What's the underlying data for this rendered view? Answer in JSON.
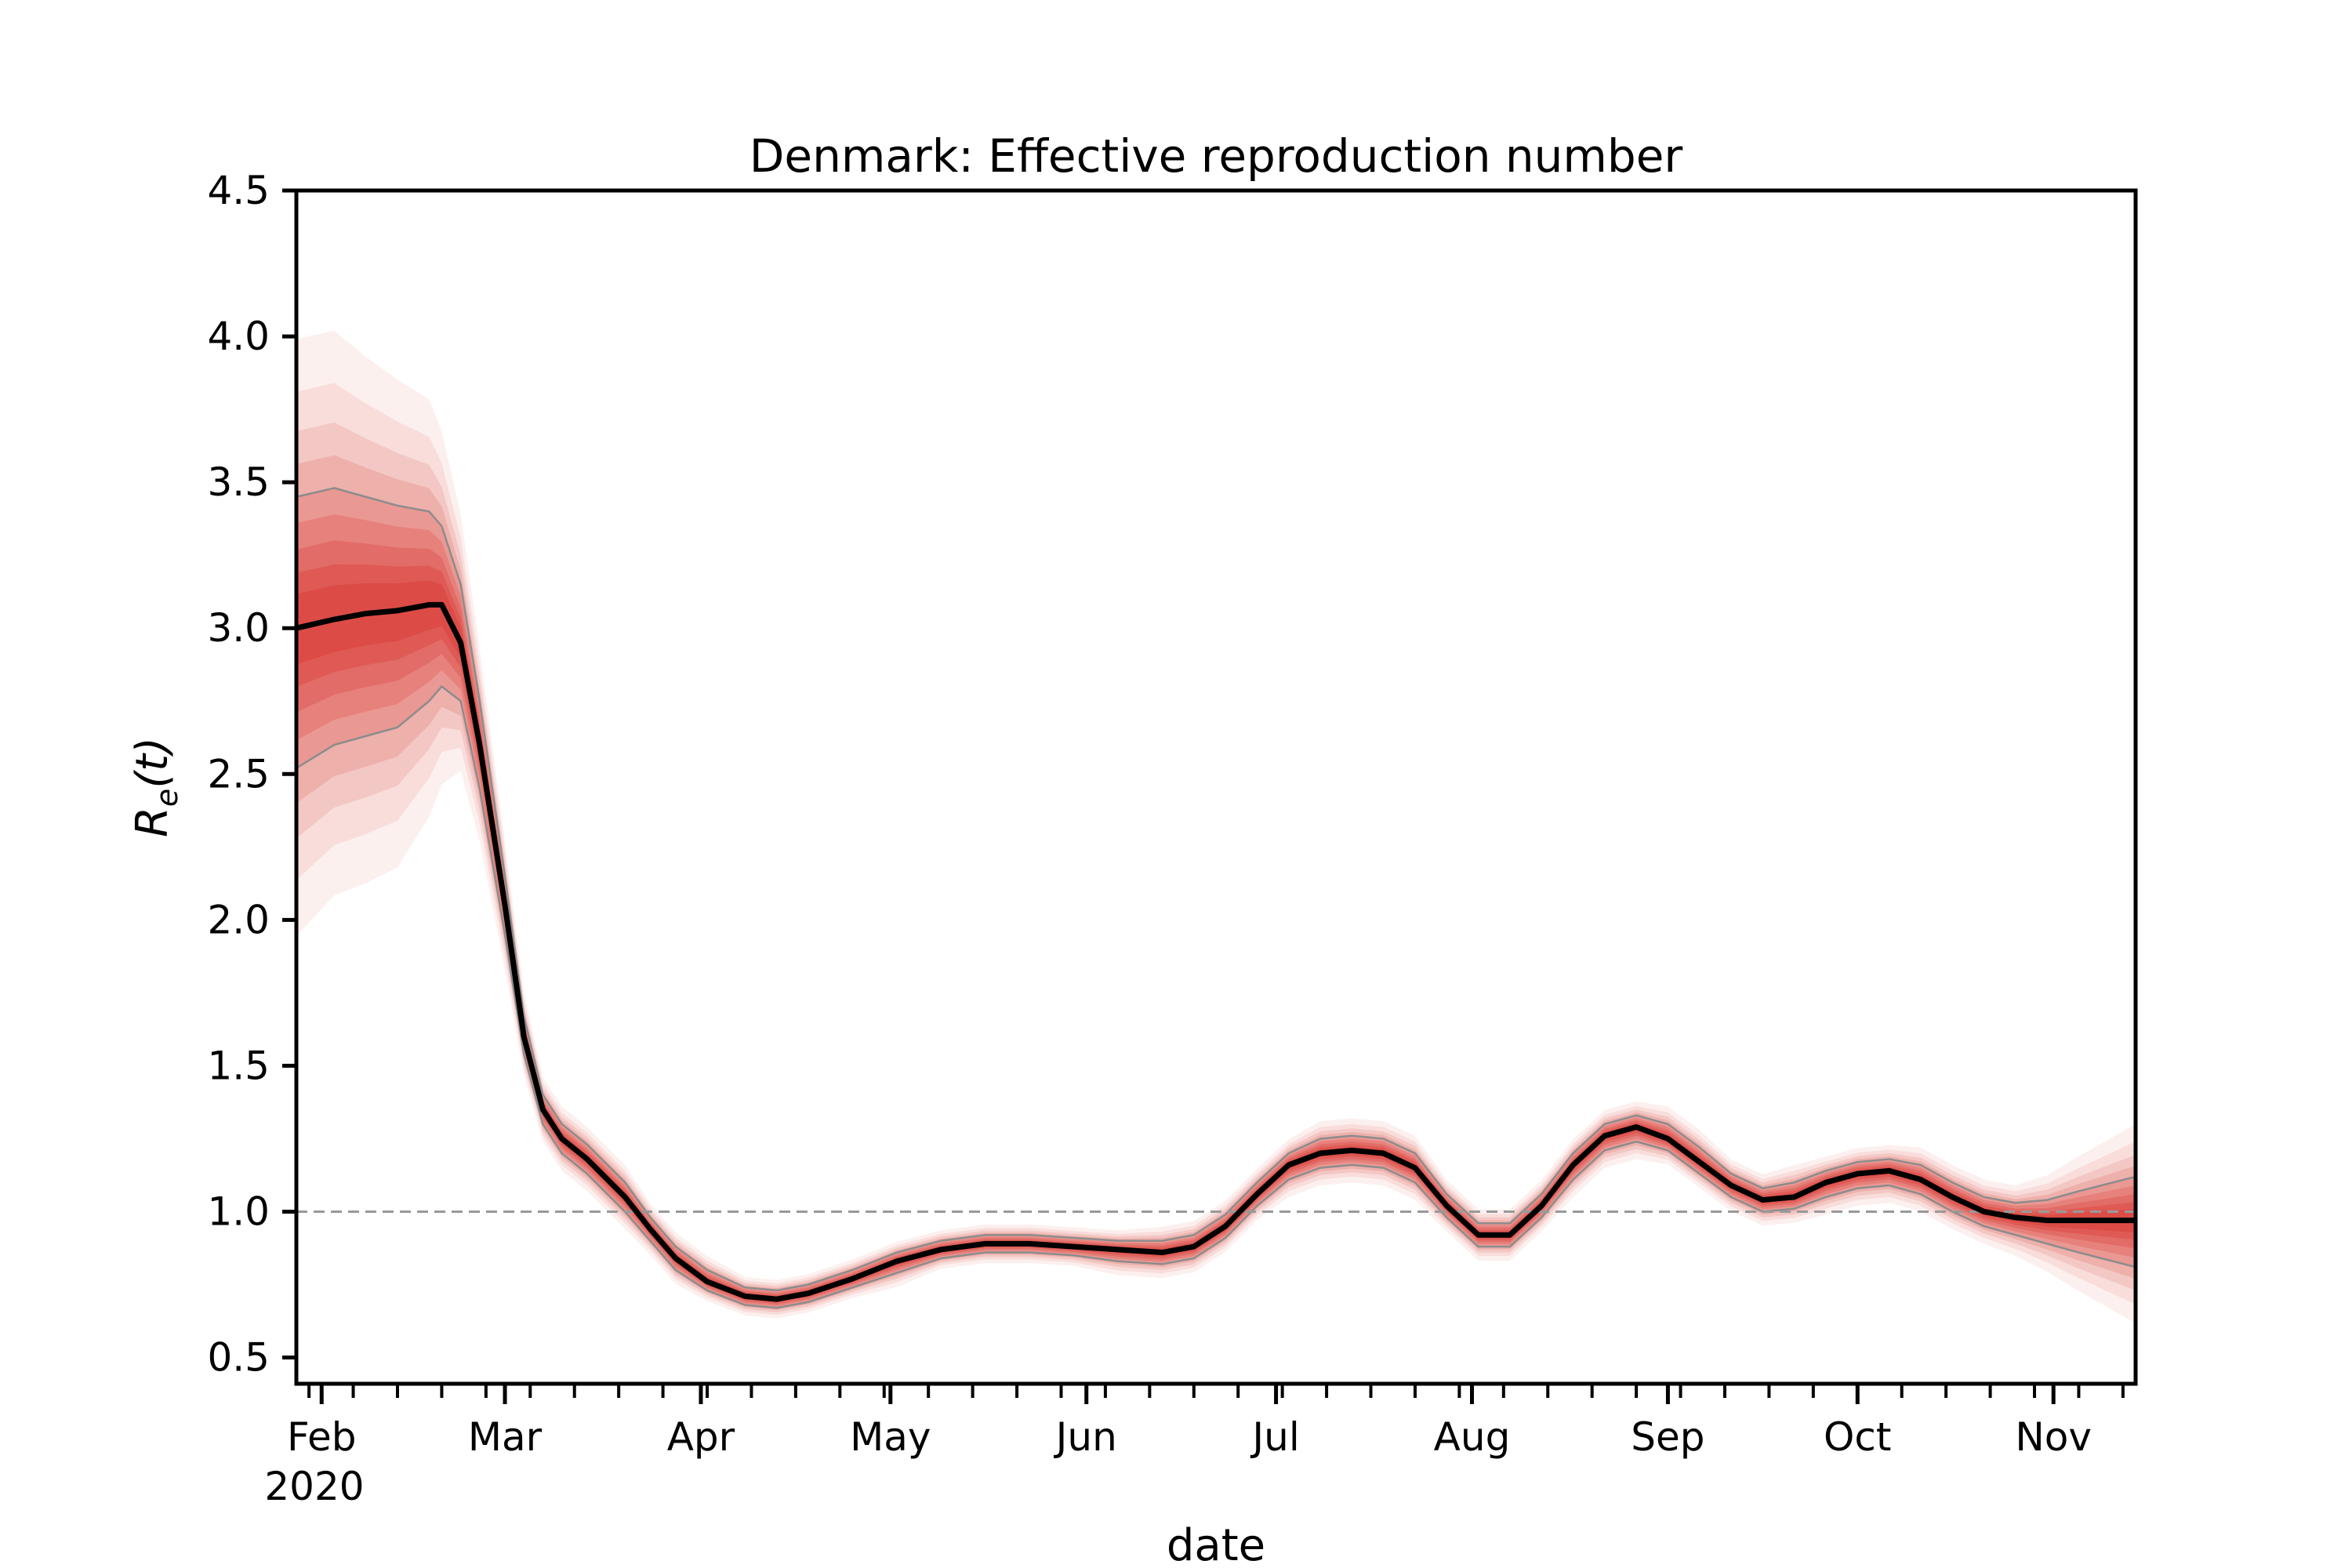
{
  "chart_data": {
    "type": "line",
    "title": "Denmark: Effective reproduction number",
    "xlabel": "date",
    "ylabel": "R_e(t)",
    "ylabel_parts": {
      "symbol": "R",
      "subscript": "e",
      "argument": "(t)"
    },
    "x_start": "2020-01-28",
    "x_end": "2020-11-14",
    "ylim": [
      0.41,
      4.5
    ],
    "yticks": [
      0.5,
      1.0,
      1.5,
      2.0,
      2.5,
      3.0,
      3.5,
      4.0,
      4.5
    ],
    "ytick_labels": [
      "0.5",
      "1.0",
      "1.5",
      "2.0",
      "2.5",
      "3.0",
      "3.5",
      "4.0",
      "4.5"
    ],
    "xticks": [
      {
        "date": "2020-02-01",
        "label": "Feb"
      },
      {
        "date": "2020-03-01",
        "label": "Mar"
      },
      {
        "date": "2020-04-01",
        "label": "Apr"
      },
      {
        "date": "2020-05-01",
        "label": "May"
      },
      {
        "date": "2020-06-01",
        "label": "Jun"
      },
      {
        "date": "2020-07-01",
        "label": "Jul"
      },
      {
        "date": "2020-08-01",
        "label": "Aug"
      },
      {
        "date": "2020-09-01",
        "label": "Sep"
      },
      {
        "date": "2020-10-01",
        "label": "Oct"
      },
      {
        "date": "2020-11-01",
        "label": "Nov"
      }
    ],
    "year_label": "2020",
    "reference_line": {
      "y": 1.0,
      "style": "dashed",
      "color": "#999999"
    },
    "grid": false,
    "colors": {
      "median": "#000000",
      "band": "#d7261e",
      "band_edge": "#8c8c8c"
    },
    "series": [
      {
        "x": [
          "2020-01-28",
          "2020-02-03",
          "2020-02-08",
          "2020-02-13",
          "2020-02-18",
          "2020-02-20",
          "2020-02-23",
          "2020-02-26",
          "2020-03-01",
          "2020-03-04",
          "2020-03-07",
          "2020-03-10",
          "2020-03-14",
          "2020-03-20",
          "2020-03-24",
          "2020-03-28",
          "2020-04-02",
          "2020-04-08",
          "2020-04-13",
          "2020-04-18",
          "2020-04-25",
          "2020-05-02",
          "2020-05-09",
          "2020-05-16",
          "2020-05-23",
          "2020-05-30",
          "2020-06-06",
          "2020-06-13",
          "2020-06-18",
          "2020-06-23",
          "2020-06-28",
          "2020-07-03",
          "2020-07-08",
          "2020-07-13",
          "2020-07-18",
          "2020-07-23",
          "2020-07-28",
          "2020-08-02",
          "2020-08-07",
          "2020-08-12",
          "2020-08-17",
          "2020-08-22",
          "2020-08-27",
          "2020-09-01",
          "2020-09-06",
          "2020-09-11",
          "2020-09-16",
          "2020-09-21",
          "2020-09-26",
          "2020-10-01",
          "2020-10-06",
          "2020-10-11",
          "2020-10-16",
          "2020-10-21",
          "2020-10-26",
          "2020-10-31",
          "2020-11-05",
          "2020-11-14"
        ],
        "median": [
          3.0,
          3.03,
          3.05,
          3.06,
          3.08,
          3.08,
          2.95,
          2.6,
          2.05,
          1.6,
          1.35,
          1.25,
          1.18,
          1.05,
          0.94,
          0.84,
          0.76,
          0.71,
          0.7,
          0.72,
          0.77,
          0.83,
          0.87,
          0.89,
          0.89,
          0.88,
          0.87,
          0.86,
          0.88,
          0.95,
          1.06,
          1.16,
          1.2,
          1.21,
          1.2,
          1.15,
          1.02,
          0.92,
          0.92,
          1.02,
          1.16,
          1.26,
          1.29,
          1.25,
          1.17,
          1.09,
          1.04,
          1.05,
          1.1,
          1.13,
          1.14,
          1.11,
          1.05,
          1.0,
          0.98,
          0.97,
          0.97,
          0.97
        ],
        "ci_lower": [
          2.52,
          2.6,
          2.63,
          2.66,
          2.75,
          2.8,
          2.75,
          2.45,
          1.95,
          1.54,
          1.3,
          1.2,
          1.13,
          1.0,
          0.9,
          0.8,
          0.73,
          0.68,
          0.67,
          0.69,
          0.74,
          0.79,
          0.84,
          0.86,
          0.86,
          0.85,
          0.83,
          0.82,
          0.84,
          0.91,
          1.02,
          1.11,
          1.15,
          1.16,
          1.15,
          1.1,
          0.98,
          0.88,
          0.88,
          0.98,
          1.11,
          1.21,
          1.24,
          1.21,
          1.13,
          1.05,
          1.0,
          1.01,
          1.05,
          1.08,
          1.09,
          1.06,
          1.0,
          0.95,
          0.92,
          0.89,
          0.86,
          0.81
        ],
        "ci_upper": [
          3.45,
          3.48,
          3.45,
          3.42,
          3.4,
          3.35,
          3.15,
          2.75,
          2.15,
          1.67,
          1.4,
          1.3,
          1.23,
          1.1,
          0.98,
          0.88,
          0.8,
          0.74,
          0.73,
          0.75,
          0.8,
          0.86,
          0.9,
          0.92,
          0.92,
          0.91,
          0.9,
          0.9,
          0.92,
          0.99,
          1.1,
          1.2,
          1.25,
          1.26,
          1.25,
          1.2,
          1.06,
          0.96,
          0.96,
          1.06,
          1.2,
          1.3,
          1.33,
          1.3,
          1.22,
          1.13,
          1.08,
          1.1,
          1.14,
          1.17,
          1.18,
          1.16,
          1.1,
          1.05,
          1.03,
          1.04,
          1.07,
          1.12
        ]
      }
    ]
  }
}
